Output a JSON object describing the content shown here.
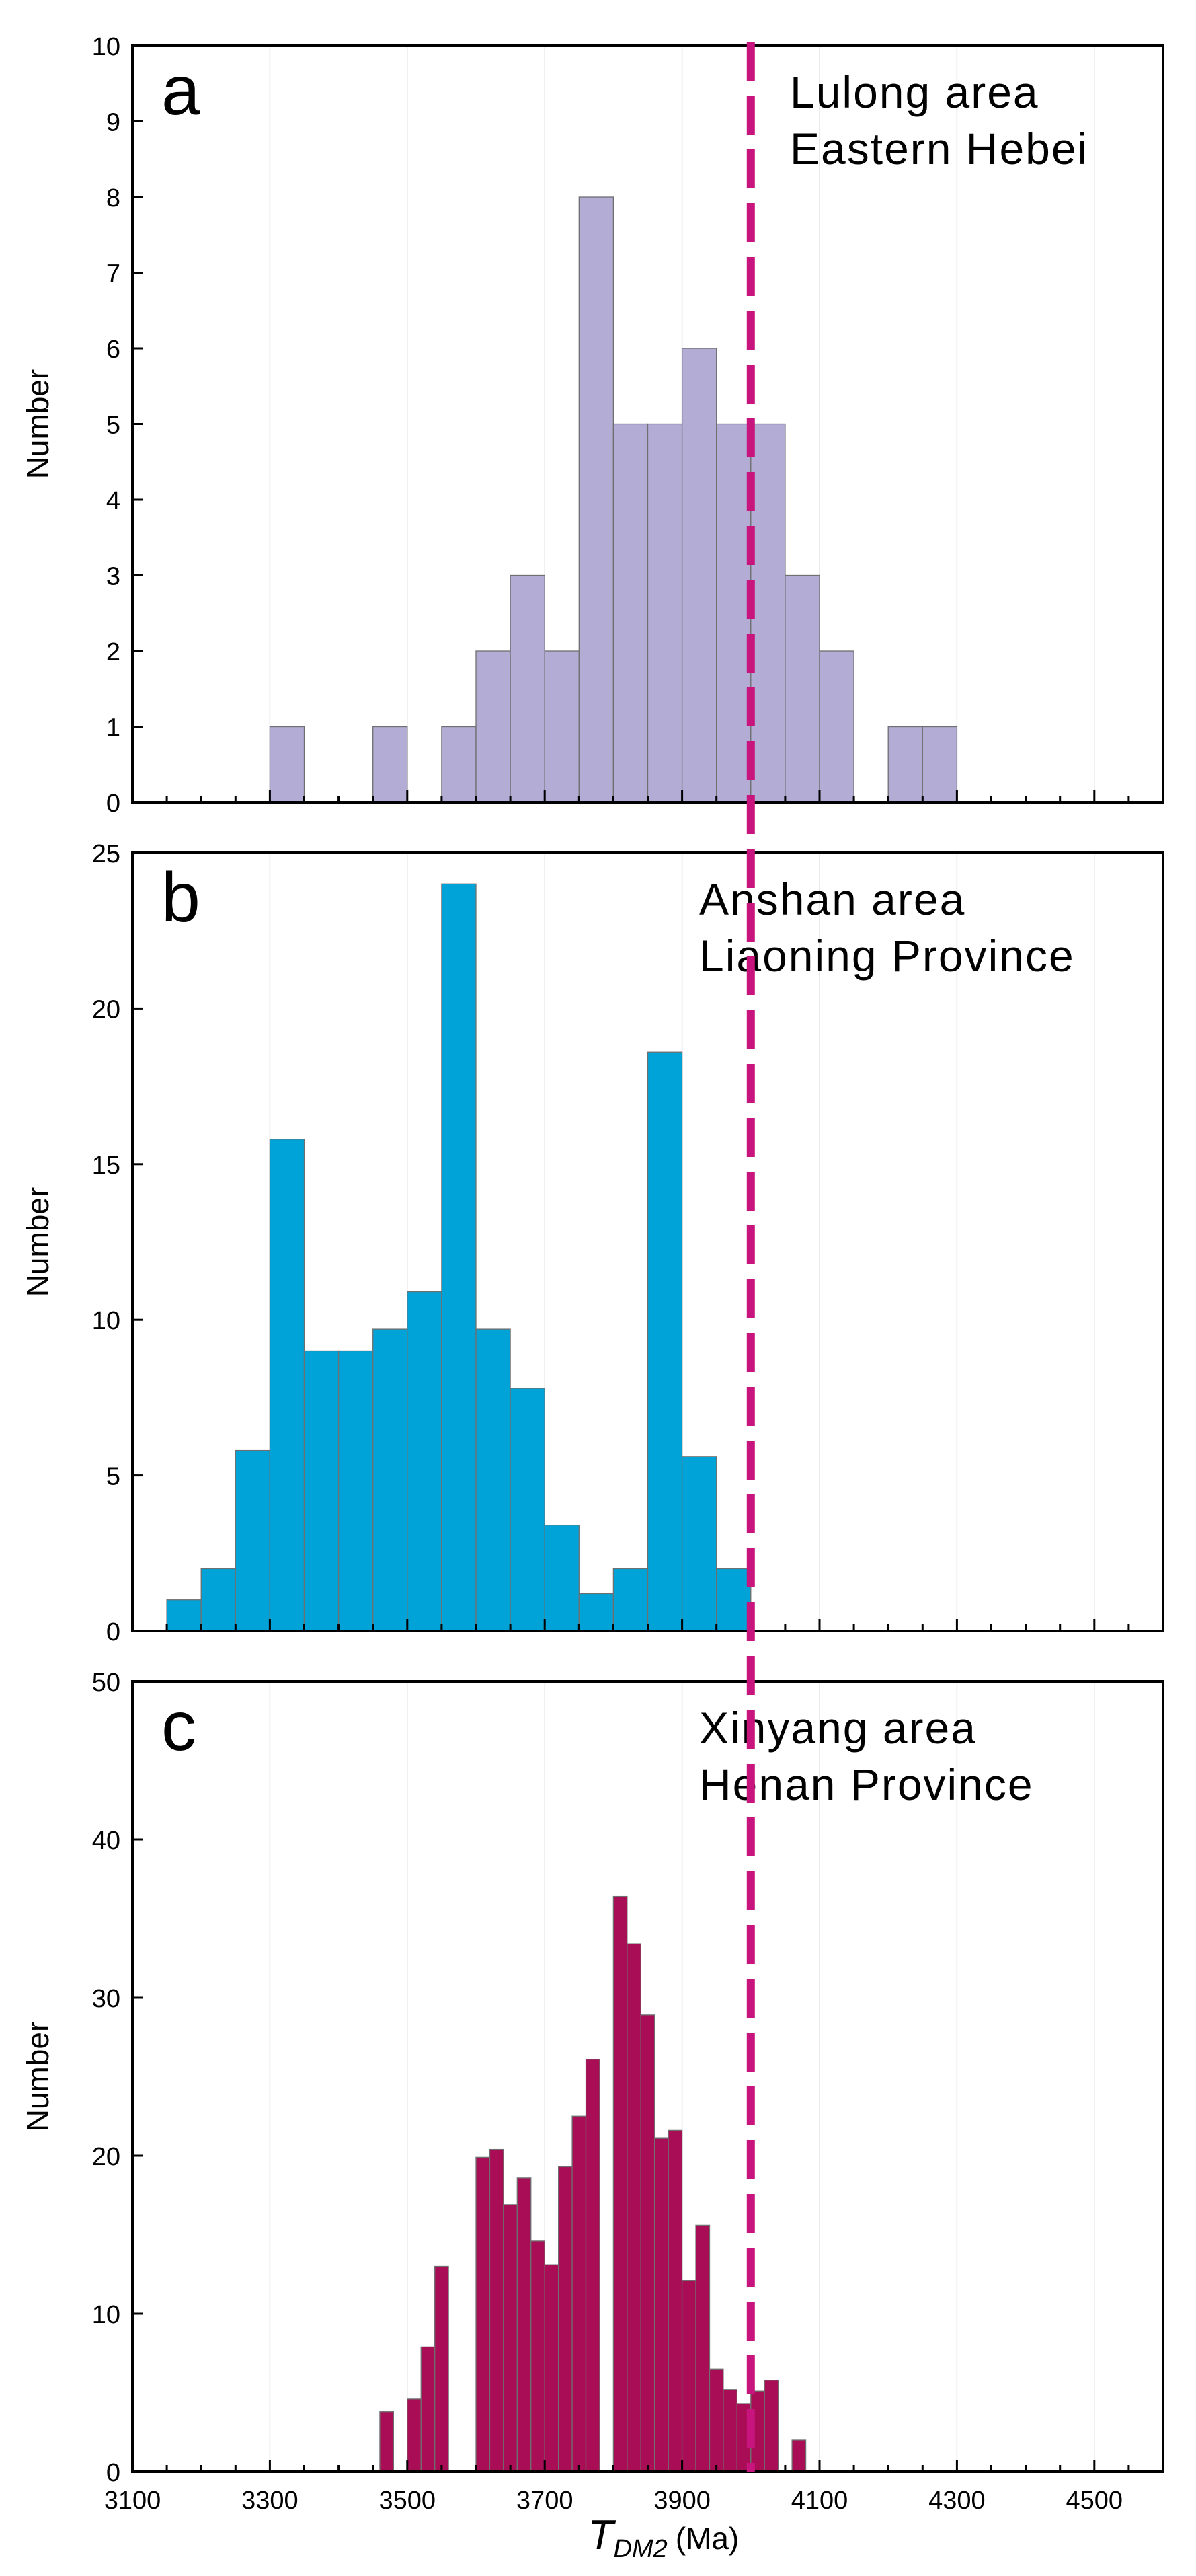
{
  "figure": {
    "xlabel_symbol": "T",
    "xlabel_subscript": "DM2",
    "xlabel_unit": "(Ma)",
    "xlim": [
      3100,
      4600
    ],
    "xticks": [
      3100,
      3300,
      3500,
      3700,
      3900,
      4100,
      4300,
      4500
    ],
    "reference_line_x": 4000,
    "reference_line_color": "#c8147d"
  },
  "chart_data": [
    {
      "type": "bar",
      "panel_label": "a",
      "annotation": [
        "Lulong area",
        "Eastern Hebei"
      ],
      "ylabel": "Number",
      "ylim": [
        0,
        10
      ],
      "yticks": [
        0,
        1,
        2,
        3,
        4,
        5,
        6,
        7,
        8,
        9,
        10
      ],
      "bin_width": 50,
      "color": "#b3acd5",
      "bins": [
        {
          "x": 3300,
          "value": 1
        },
        {
          "x": 3450,
          "value": 1
        },
        {
          "x": 3550,
          "value": 1
        },
        {
          "x": 3600,
          "value": 2
        },
        {
          "x": 3650,
          "value": 3
        },
        {
          "x": 3700,
          "value": 2
        },
        {
          "x": 3750,
          "value": 8
        },
        {
          "x": 3800,
          "value": 5
        },
        {
          "x": 3850,
          "value": 5
        },
        {
          "x": 3900,
          "value": 6
        },
        {
          "x": 3950,
          "value": 5
        },
        {
          "x": 4000,
          "value": 5
        },
        {
          "x": 4050,
          "value": 3
        },
        {
          "x": 4100,
          "value": 2
        },
        {
          "x": 4200,
          "value": 1
        },
        {
          "x": 4250,
          "value": 1
        }
      ]
    },
    {
      "type": "bar",
      "panel_label": "b",
      "annotation": [
        "Anshan area",
        "Liaoning Province"
      ],
      "ylabel": "Number",
      "ylim": [
        0,
        25
      ],
      "yticks": [
        0,
        5,
        10,
        15,
        20,
        25
      ],
      "bin_width": 50,
      "color": "#00a3d7",
      "bins": [
        {
          "x": 3150,
          "value": 1
        },
        {
          "x": 3200,
          "value": 2
        },
        {
          "x": 3250,
          "value": 5.8
        },
        {
          "x": 3300,
          "value": 15.8
        },
        {
          "x": 3350,
          "value": 9
        },
        {
          "x": 3400,
          "value": 9
        },
        {
          "x": 3450,
          "value": 9.7
        },
        {
          "x": 3500,
          "value": 10.9
        },
        {
          "x": 3550,
          "value": 24
        },
        {
          "x": 3600,
          "value": 9.7
        },
        {
          "x": 3650,
          "value": 7.8
        },
        {
          "x": 3700,
          "value": 3.4
        },
        {
          "x": 3750,
          "value": 1.2
        },
        {
          "x": 3800,
          "value": 2
        },
        {
          "x": 3850,
          "value": 18.6
        },
        {
          "x": 3900,
          "value": 5.6
        },
        {
          "x": 3950,
          "value": 2
        }
      ]
    },
    {
      "type": "bar",
      "panel_label": "c",
      "annotation": [
        "Xinyang area",
        "Henan Province"
      ],
      "ylabel": "Number",
      "ylim": [
        0,
        50
      ],
      "yticks": [
        0,
        10,
        20,
        30,
        40,
        50
      ],
      "bin_width": 20,
      "color": "#a80d55",
      "bins": [
        {
          "x": 3460,
          "value": 3.8
        },
        {
          "x": 3500,
          "value": 4.6
        },
        {
          "x": 3520,
          "value": 7.9
        },
        {
          "x": 3540,
          "value": 13
        },
        {
          "x": 3600,
          "value": 19.9
        },
        {
          "x": 3620,
          "value": 20.4
        },
        {
          "x": 3640,
          "value": 16.9
        },
        {
          "x": 3660,
          "value": 18.6
        },
        {
          "x": 3680,
          "value": 14.6
        },
        {
          "x": 3700,
          "value": 13.1
        },
        {
          "x": 3720,
          "value": 19.3
        },
        {
          "x": 3740,
          "value": 22.5
        },
        {
          "x": 3760,
          "value": 26.1
        },
        {
          "x": 3800,
          "value": 36.4
        },
        {
          "x": 3820,
          "value": 33.4
        },
        {
          "x": 3840,
          "value": 28.9
        },
        {
          "x": 3860,
          "value": 21.1
        },
        {
          "x": 3880,
          "value": 21.6
        },
        {
          "x": 3900,
          "value": 12.1
        },
        {
          "x": 3920,
          "value": 15.6
        },
        {
          "x": 3940,
          "value": 6.5
        },
        {
          "x": 3960,
          "value": 5.2
        },
        {
          "x": 3980,
          "value": 4.3
        },
        {
          "x": 4000,
          "value": 5.1
        },
        {
          "x": 4020,
          "value": 5.8
        },
        {
          "x": 4060,
          "value": 2
        }
      ]
    }
  ]
}
